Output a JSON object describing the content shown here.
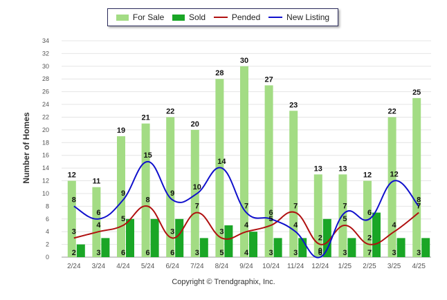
{
  "legend": {
    "for_sale": "For Sale",
    "sold": "Sold",
    "pended": "Pended",
    "new_listing": "New Listing"
  },
  "colors": {
    "for_sale": "#a3dc84",
    "sold": "#1aa626",
    "pended": "#b01010",
    "new_listing": "#1010cc"
  },
  "copyright": "Copyright © Trendgraphix, Inc.",
  "chart_data": {
    "type": "bar",
    "ylabel": "Number of Homes",
    "xlabel": "",
    "ylim": [
      0,
      34
    ],
    "yticks": [
      0,
      2,
      4,
      6,
      8,
      10,
      12,
      14,
      16,
      18,
      20,
      22,
      24,
      26,
      28,
      30,
      32,
      34
    ],
    "grid": true,
    "legend_position": "top",
    "categories": [
      "2/24",
      "3/24",
      "4/24",
      "5/24",
      "6/24",
      "7/24",
      "8/24",
      "9/24",
      "10/24",
      "11/24",
      "12/24",
      "1/25",
      "2/25",
      "3/25",
      "4/25"
    ],
    "series": [
      {
        "name": "For Sale",
        "type": "bar",
        "values": [
          12,
          11,
          19,
          21,
          22,
          20,
          28,
          30,
          27,
          23,
          13,
          13,
          12,
          22,
          25
        ]
      },
      {
        "name": "Sold",
        "type": "bar",
        "values": [
          2,
          3,
          6,
          6,
          6,
          3,
          5,
          4,
          3,
          3,
          6,
          3,
          7,
          3,
          3
        ]
      },
      {
        "name": "Pended",
        "type": "line",
        "values": [
          3,
          4,
          5,
          8,
          3,
          7,
          3,
          4,
          5,
          7,
          2,
          5,
          2,
          4,
          7
        ]
      },
      {
        "name": "New Listing",
        "type": "line",
        "values": [
          8,
          6,
          9,
          15,
          9,
          10,
          14,
          7,
          6,
          4,
          0,
          7,
          6,
          12,
          8
        ]
      }
    ]
  }
}
